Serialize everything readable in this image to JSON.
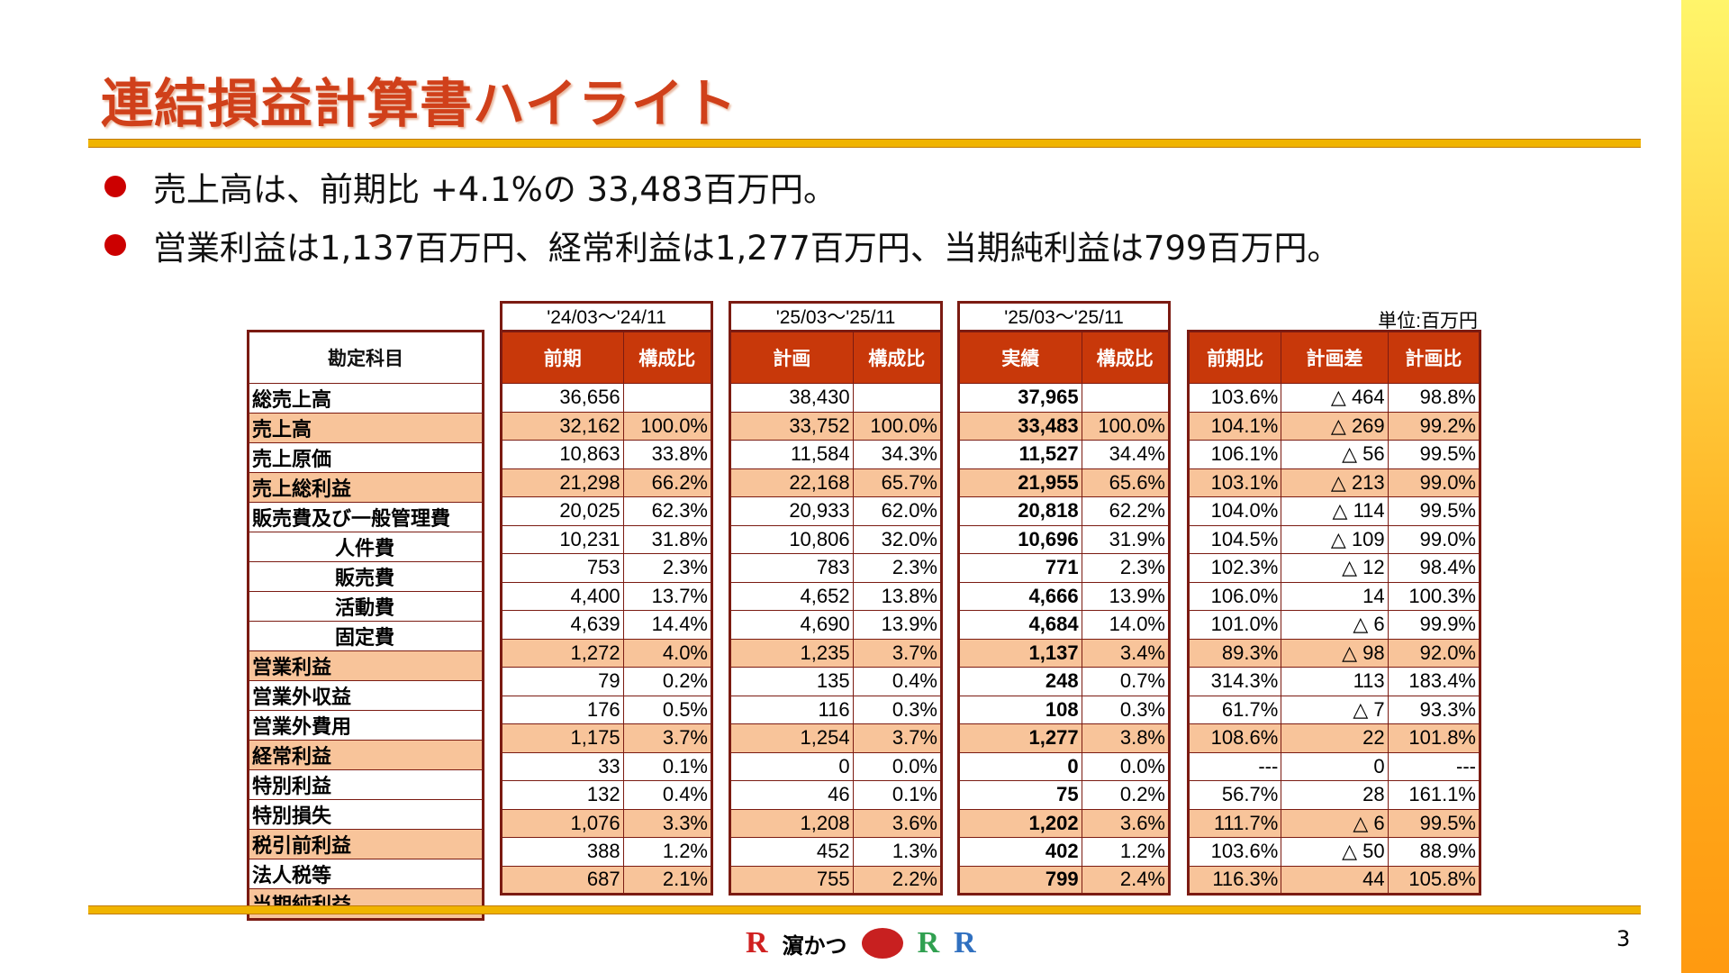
{
  "title": "連結損益計算書ハイライト",
  "bullets": [
    "売上高は、前期比 +4.1%の 33,483百万円。",
    "営業利益は1,137百万円、経常利益は1,277百万円、当期純利益は799百万円。"
  ],
  "unit": "単位:百万円",
  "periods": [
    "'24/03～'24/11",
    "'25/03～'25/11",
    "'25/03～'25/11"
  ],
  "headers": {
    "account": "勘定科目",
    "g1": [
      "前期",
      "構成比"
    ],
    "g2": [
      "計画",
      "構成比"
    ],
    "g3": [
      "実績",
      "構成比"
    ],
    "g4": [
      "前期比",
      "計画差",
      "計画比"
    ]
  },
  "rows": [
    {
      "label": "総売上高",
      "hl": false,
      "indent": false,
      "v": [
        "36,656",
        "",
        "38,430",
        "",
        "37,965",
        "",
        "103.6%",
        "△ 464",
        "98.8%"
      ]
    },
    {
      "label": "売上高",
      "hl": true,
      "indent": false,
      "v": [
        "32,162",
        "100.0%",
        "33,752",
        "100.0%",
        "33,483",
        "100.0%",
        "104.1%",
        "△ 269",
        "99.2%"
      ]
    },
    {
      "label": "売上原価",
      "hl": false,
      "indent": false,
      "v": [
        "10,863",
        "33.8%",
        "11,584",
        "34.3%",
        "11,527",
        "34.4%",
        "106.1%",
        "△ 56",
        "99.5%"
      ]
    },
    {
      "label": "売上総利益",
      "hl": true,
      "indent": false,
      "v": [
        "21,298",
        "66.2%",
        "22,168",
        "65.7%",
        "21,955",
        "65.6%",
        "103.1%",
        "△ 213",
        "99.0%"
      ]
    },
    {
      "label": "販売費及び一般管理費",
      "hl": false,
      "indent": false,
      "v": [
        "20,025",
        "62.3%",
        "20,933",
        "62.0%",
        "20,818",
        "62.2%",
        "104.0%",
        "△ 114",
        "99.5%"
      ]
    },
    {
      "label": "人件費",
      "hl": false,
      "indent": true,
      "v": [
        "10,231",
        "31.8%",
        "10,806",
        "32.0%",
        "10,696",
        "31.9%",
        "104.5%",
        "△ 109",
        "99.0%"
      ]
    },
    {
      "label": "販売費",
      "hl": false,
      "indent": true,
      "v": [
        "753",
        "2.3%",
        "783",
        "2.3%",
        "771",
        "2.3%",
        "102.3%",
        "△ 12",
        "98.4%"
      ]
    },
    {
      "label": "活動費",
      "hl": false,
      "indent": true,
      "v": [
        "4,400",
        "13.7%",
        "4,652",
        "13.8%",
        "4,666",
        "13.9%",
        "106.0%",
        "14",
        "100.3%"
      ]
    },
    {
      "label": "固定費",
      "hl": false,
      "indent": true,
      "v": [
        "4,639",
        "14.4%",
        "4,690",
        "13.9%",
        "4,684",
        "14.0%",
        "101.0%",
        "△ 6",
        "99.9%"
      ]
    },
    {
      "label": "営業利益",
      "hl": true,
      "indent": false,
      "v": [
        "1,272",
        "4.0%",
        "1,235",
        "3.7%",
        "1,137",
        "3.4%",
        "89.3%",
        "△ 98",
        "92.0%"
      ]
    },
    {
      "label": "営業外収益",
      "hl": false,
      "indent": false,
      "v": [
        "79",
        "0.2%",
        "135",
        "0.4%",
        "248",
        "0.7%",
        "314.3%",
        "113",
        "183.4%"
      ]
    },
    {
      "label": "営業外費用",
      "hl": false,
      "indent": false,
      "v": [
        "176",
        "0.5%",
        "116",
        "0.3%",
        "108",
        "0.3%",
        "61.7%",
        "△ 7",
        "93.3%"
      ]
    },
    {
      "label": "経常利益",
      "hl": true,
      "indent": false,
      "v": [
        "1,175",
        "3.7%",
        "1,254",
        "3.7%",
        "1,277",
        "3.8%",
        "108.6%",
        "22",
        "101.8%"
      ]
    },
    {
      "label": "特別利益",
      "hl": false,
      "indent": false,
      "v": [
        "33",
        "0.1%",
        "0",
        "0.0%",
        "0",
        "0.0%",
        "---",
        "0",
        "---"
      ]
    },
    {
      "label": "特別損失",
      "hl": false,
      "indent": false,
      "v": [
        "132",
        "0.4%",
        "46",
        "0.1%",
        "75",
        "0.2%",
        "56.7%",
        "28",
        "161.1%"
      ]
    },
    {
      "label": "税引前利益",
      "hl": true,
      "indent": false,
      "v": [
        "1,076",
        "3.3%",
        "1,208",
        "3.6%",
        "1,202",
        "3.6%",
        "111.7%",
        "△ 6",
        "99.5%"
      ]
    },
    {
      "label": "法人税等",
      "hl": false,
      "indent": false,
      "v": [
        "388",
        "1.2%",
        "452",
        "1.3%",
        "402",
        "1.2%",
        "103.6%",
        "△ 50",
        "88.9%"
      ]
    },
    {
      "label": "当期純利益",
      "hl": true,
      "indent": false,
      "v": [
        "687",
        "2.1%",
        "755",
        "2.2%",
        "799",
        "2.4%",
        "116.3%",
        "44",
        "105.8%"
      ]
    }
  ],
  "logos": [
    "Ringer Hut",
    "濵かつ",
    "長崎",
    "Ringer Foods",
    "RHD"
  ],
  "page_number": "3",
  "colors": {
    "header": "#c8380a",
    "highlight": "#f8c49a",
    "border": "#7b1b12",
    "title": "#d0401a"
  }
}
